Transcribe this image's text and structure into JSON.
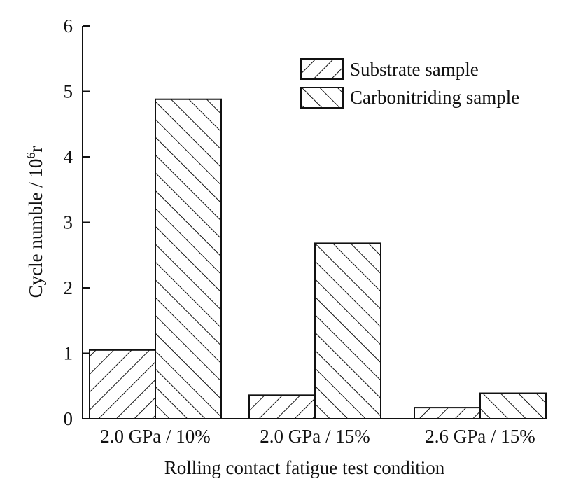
{
  "chart_data": {
    "type": "bar",
    "title": "",
    "xlabel": "Rolling contact fatigue test condition",
    "ylabel_main": "Cycle numble / 10",
    "ylabel_sup": "6",
    "ylabel_unit": "r",
    "categories": [
      "2.0 GPa / 10%",
      "2.0 GPa / 15%",
      "2.6 GPa / 15%"
    ],
    "series": [
      {
        "name": "Substrate sample",
        "pattern": "hatch-forward",
        "values": [
          1.05,
          0.36,
          0.17
        ]
      },
      {
        "name": "Carbonitriding sample",
        "pattern": "hatch-backward",
        "values": [
          4.88,
          2.68,
          0.39
        ]
      }
    ],
    "ylim": [
      0,
      6
    ],
    "yticks": [
      "0",
      "1",
      "2",
      "3",
      "4",
      "5",
      "6"
    ],
    "grid": false,
    "legend_position": "top-right",
    "colors": {
      "ink": "#111111",
      "background": "#ffffff"
    }
  }
}
